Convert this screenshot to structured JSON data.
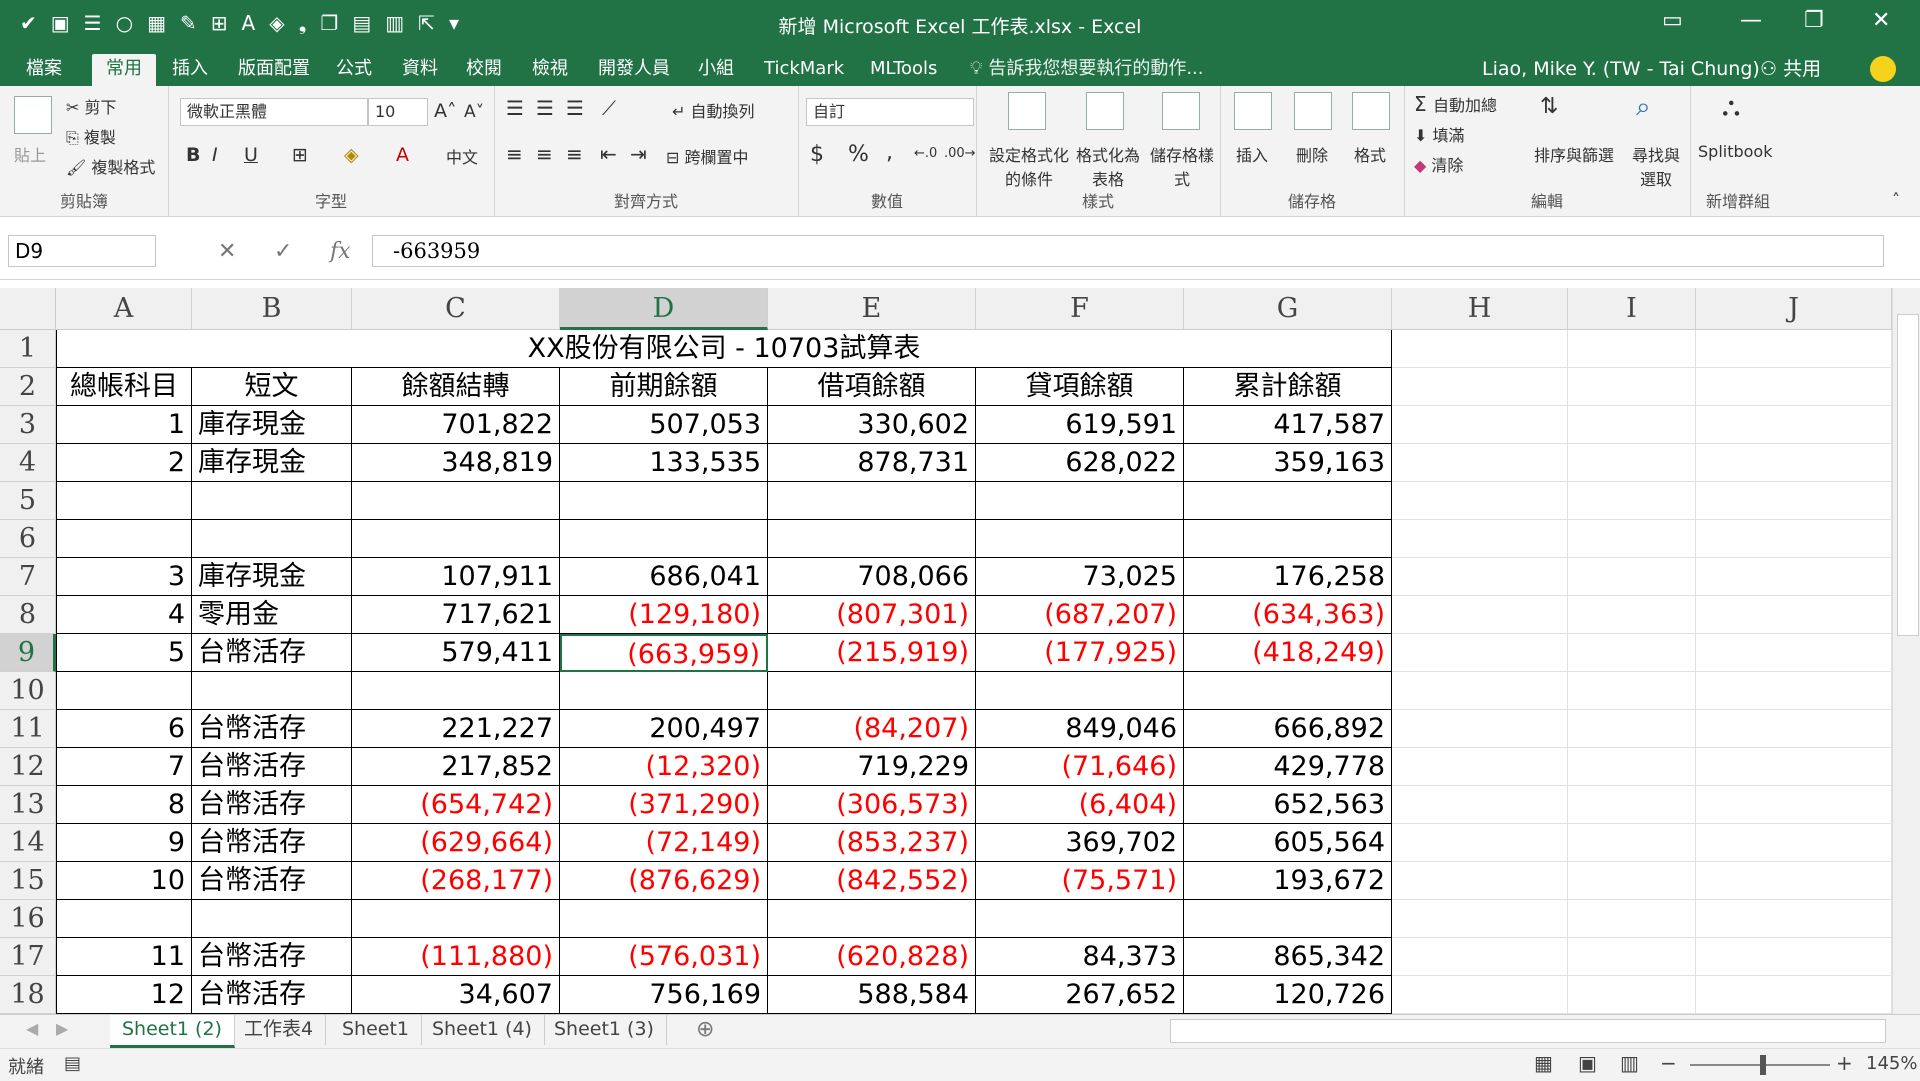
{
  "window": {
    "title": "新增 Microsoft Excel 工作表.xlsx - Excel",
    "user": "Liao, Mike Y. (TW - Tai Chung)",
    "share": "共用",
    "tell_me": "告訴我您想要執行的動作..."
  },
  "tabs": [
    {
      "label": "檔案"
    },
    {
      "label": "常用",
      "active": true
    },
    {
      "label": "插入"
    },
    {
      "label": "版面配置"
    },
    {
      "label": "公式"
    },
    {
      "label": "資料"
    },
    {
      "label": "校閱"
    },
    {
      "label": "檢視"
    },
    {
      "label": "開發人員"
    },
    {
      "label": "小組"
    },
    {
      "label": "TickMark"
    },
    {
      "label": "MLTools"
    }
  ],
  "ribbon": {
    "clipboard": {
      "paste": "貼上",
      "cut": "剪下",
      "copy": "複製",
      "format_painter": "複製格式",
      "label": "剪貼簿"
    },
    "font": {
      "name": "微軟正黑體",
      "size": "10",
      "bold": "B",
      "italic": "I",
      "underline": "U",
      "phonetic": "中文",
      "label": "字型"
    },
    "alignment": {
      "wrap": "自動換列",
      "merge": "跨欄置中",
      "label": "對齊方式"
    },
    "number": {
      "format": "自訂",
      "currency": "$",
      "percent": "%",
      "comma": ",",
      "label": "數值"
    },
    "styles": {
      "conditional": "設定格式化的條件",
      "table": "格式化為表格",
      "cell": "儲存格樣式",
      "label": "樣式"
    },
    "cells": {
      "insert": "插入",
      "delete": "刪除",
      "format": "格式",
      "label": "儲存格"
    },
    "editing": {
      "autosum": "自動加總",
      "fill": "填滿",
      "clear": "清除",
      "sort": "排序與篩選",
      "find": "尋找與選取",
      "label": "編輯"
    },
    "addin": {
      "splitbook": "Splitbook",
      "label": "新增群組"
    }
  },
  "formula_bar": {
    "name_box": "D9",
    "formula": "-663959",
    "fx": "fx"
  },
  "columns": [
    "A",
    "B",
    "C",
    "D",
    "E",
    "F",
    "G",
    "H",
    "I",
    "J"
  ],
  "selected_column": "D",
  "selected_row": "9",
  "title_cell": "XX股份有限公司 - 10703試算表",
  "headers": [
    "總帳科目",
    "短文",
    "餘額結轉",
    "前期餘額",
    "借項餘額",
    "貸項餘額",
    "累計餘額"
  ],
  "rows": [
    {
      "row": "3",
      "a": "1",
      "b": "庫存現金",
      "c": "701,822",
      "d": "507,053",
      "e": "330,602",
      "f": "619,591",
      "g": "417,587"
    },
    {
      "row": "4",
      "a": "2",
      "b": "庫存現金",
      "c": "348,819",
      "d": "133,535",
      "e": "878,731",
      "f": "628,022",
      "g": "359,163"
    },
    {
      "row": "5"
    },
    {
      "row": "6"
    },
    {
      "row": "7",
      "a": "3",
      "b": "庫存現金",
      "c": "107,911",
      "d": "686,041",
      "e": "708,066",
      "f": "73,025",
      "g": "176,258"
    },
    {
      "row": "8",
      "a": "4",
      "b": "零用金",
      "c": "717,621",
      "d": "(129,180)",
      "e": "(807,301)",
      "f": "(687,207)",
      "g": "(634,363)"
    },
    {
      "row": "9",
      "a": "5",
      "b": "台幣活存",
      "c": "579,411",
      "d": "(663,959)",
      "e": "(215,919)",
      "f": "(177,925)",
      "g": "(418,249)"
    },
    {
      "row": "10"
    },
    {
      "row": "11",
      "a": "6",
      "b": "台幣活存",
      "c": "221,227",
      "d": "200,497",
      "e": "(84,207)",
      "f": "849,046",
      "g": "666,892"
    },
    {
      "row": "12",
      "a": "7",
      "b": "台幣活存",
      "c": "217,852",
      "d": "(12,320)",
      "e": "719,229",
      "f": "(71,646)",
      "g": "429,778"
    },
    {
      "row": "13",
      "a": "8",
      "b": "台幣活存",
      "c": "(654,742)",
      "d": "(371,290)",
      "e": "(306,573)",
      "f": "(6,404)",
      "g": "652,563"
    },
    {
      "row": "14",
      "a": "9",
      "b": "台幣活存",
      "c": "(629,664)",
      "d": "(72,149)",
      "e": "(853,237)",
      "f": "369,702",
      "g": "605,564"
    },
    {
      "row": "15",
      "a": "10",
      "b": "台幣活存",
      "c": "(268,177)",
      "d": "(876,629)",
      "e": "(842,552)",
      "f": "(75,571)",
      "g": "193,672"
    },
    {
      "row": "16"
    },
    {
      "row": "17",
      "a": "11",
      "b": "台幣活存",
      "c": "(111,880)",
      "d": "(576,031)",
      "e": "(620,828)",
      "f": "84,373",
      "g": "865,342"
    },
    {
      "row": "18",
      "a": "12",
      "b": "台幣活存",
      "c": "34,607",
      "d": "756,169",
      "e": "588,584",
      "f": "267,652",
      "g": "120,726"
    }
  ],
  "sheet_tabs": [
    {
      "label": "Sheet1 (2)",
      "active": true
    },
    {
      "label": "工作表4"
    },
    {
      "label": "Sheet1"
    },
    {
      "label": "Sheet1 (4)"
    },
    {
      "label": "Sheet1 (3)"
    }
  ],
  "status": {
    "ready": "就緒",
    "zoom": "145%"
  },
  "colors": {
    "accent": "#217346",
    "negative": "#ff0000"
  }
}
